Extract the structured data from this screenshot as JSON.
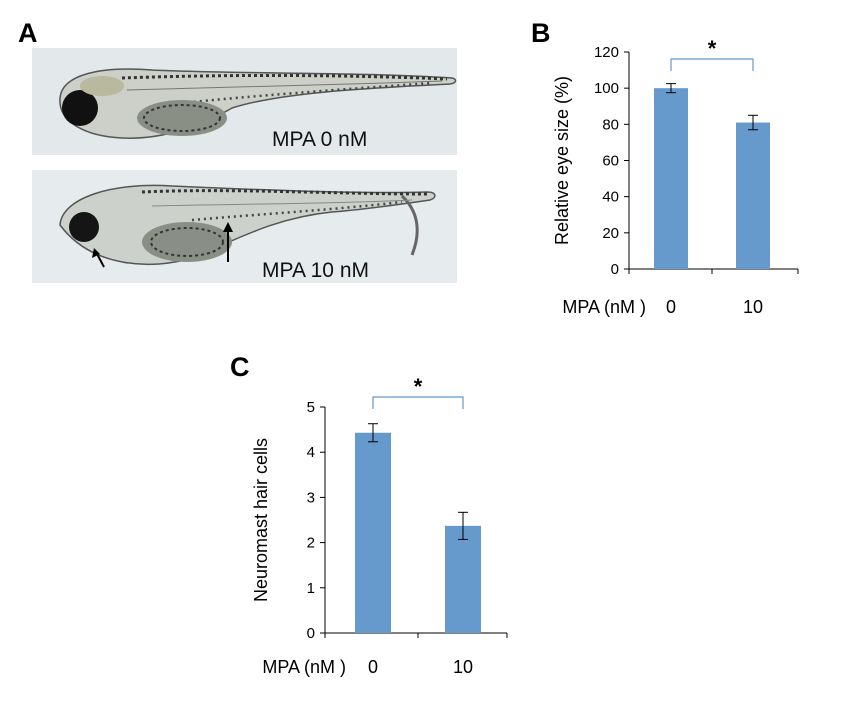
{
  "panels": {
    "a": {
      "letter": "A",
      "images": [
        {
          "caption": "MPA 0 nM"
        },
        {
          "caption": "MPA 10 nM"
        }
      ]
    },
    "b": {
      "letter": "B"
    },
    "c": {
      "letter": "C"
    }
  },
  "chart_data": [
    {
      "panel": "B",
      "type": "bar",
      "categories": [
        "0",
        "10"
      ],
      "values": [
        100,
        81
      ],
      "errors": [
        2.5,
        4
      ],
      "title": "",
      "xlabel": "MPA (nM )",
      "ylabel": "Relative eye size (%)",
      "ylim": [
        0,
        120
      ],
      "yticks": [
        "0",
        "20",
        "40",
        "60",
        "80",
        "100",
        "120"
      ],
      "significance": "*",
      "bar_color": "#6699cc",
      "bracket_color": "#6699cc",
      "grid": false
    },
    {
      "panel": "C",
      "type": "bar",
      "categories": [
        "0",
        "10"
      ],
      "values": [
        4.43,
        2.37
      ],
      "errors": [
        0.2,
        0.3
      ],
      "title": "",
      "xlabel": "MPA (nM )",
      "ylabel": "Neuromast hair cells",
      "ylim": [
        0,
        5
      ],
      "yticks": [
        "0",
        "1",
        "2",
        "3",
        "4",
        "5"
      ],
      "significance": "*",
      "bar_color": "#6699cc",
      "bracket_color": "#6699cc",
      "grid": false
    }
  ]
}
